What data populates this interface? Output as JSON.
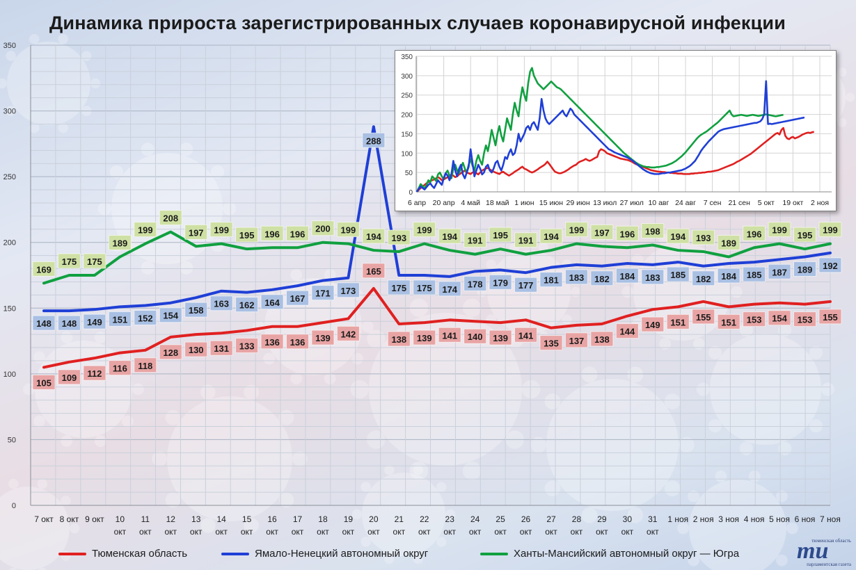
{
  "title": "Динамика прироста зарегистрированных случаев коронавирусной инфекции",
  "colors": {
    "tyumen": "#e02020",
    "yanao": "#1f3fd6",
    "hmao": "#10a040",
    "tyumen_label_bg": "#e8a4a4",
    "yanao_label_bg": "#a9c0e3",
    "hmao_label_bg": "#cfe0a4"
  },
  "legend": {
    "tyumen": "Тюменская область",
    "yanao": "Ямало-Ненецкий автономный округ",
    "hmao": "Ханты-Мансийский автономный округ — Югра"
  },
  "logo": {
    "mark": "mu",
    "top": "тюменская область",
    "bottom": "парламентская газета"
  },
  "chart_data": [
    {
      "type": "line",
      "title": "Динамика прироста зарегистрированных случаев коронавирусной инфекции",
      "categories": [
        [
          "7 окт"
        ],
        [
          "8 окт"
        ],
        [
          "9 окт"
        ],
        [
          "10",
          "окт"
        ],
        [
          "11",
          "окт"
        ],
        [
          "12",
          "окт"
        ],
        [
          "13",
          "окт"
        ],
        [
          "14",
          "окт"
        ],
        [
          "15",
          "окт"
        ],
        [
          "16",
          "окт"
        ],
        [
          "17",
          "окт"
        ],
        [
          "18",
          "окт"
        ],
        [
          "19",
          "окт"
        ],
        [
          "20",
          "окт"
        ],
        [
          "21",
          "окт"
        ],
        [
          "22",
          "окт"
        ],
        [
          "23",
          "окт"
        ],
        [
          "24",
          "окт"
        ],
        [
          "25",
          "окт"
        ],
        [
          "26",
          "окт"
        ],
        [
          "27",
          "окт"
        ],
        [
          "28",
          "окт"
        ],
        [
          "29",
          "окт"
        ],
        [
          "30",
          "окт"
        ],
        [
          "31",
          "окт"
        ],
        [
          "1 ноя"
        ],
        [
          "2 ноя"
        ],
        [
          "3 ноя"
        ],
        [
          "4 ноя"
        ],
        [
          "5 ноя"
        ],
        [
          "6 ноя"
        ],
        [
          "7 ноя"
        ]
      ],
      "ylim": [
        0,
        350
      ],
      "yticks": [
        0,
        50,
        100,
        150,
        200,
        250,
        300,
        350
      ],
      "grid": true,
      "legend_position": "bottom",
      "series": [
        {
          "key": "tyumen",
          "name": "Тюменская область",
          "values": [
            105,
            109,
            112,
            116,
            118,
            128,
            130,
            131,
            133,
            136,
            136,
            139,
            142,
            165,
            138,
            139,
            141,
            140,
            139,
            141,
            135,
            137,
            138,
            144,
            149,
            151,
            155,
            151,
            153,
            154,
            153,
            155
          ]
        },
        {
          "key": "yanao",
          "name": "Ямало-Ненецкий автономный округ",
          "values": [
            148,
            148,
            149,
            151,
            152,
            154,
            158,
            163,
            162,
            164,
            167,
            171,
            173,
            288,
            175,
            175,
            174,
            178,
            179,
            177,
            181,
            183,
            182,
            184,
            183,
            185,
            182,
            184,
            185,
            187,
            189,
            192
          ]
        },
        {
          "key": "hmao",
          "name": "Ханты-Мансийский автономный округ — Югра",
          "values": [
            169,
            175,
            175,
            189,
            199,
            208,
            197,
            199,
            195,
            196,
            196,
            200,
            199,
            194,
            193,
            199,
            194,
            191,
            195,
            191,
            194,
            199,
            197,
            196,
            198,
            194,
            193,
            189,
            196,
            199,
            195,
            199
          ]
        }
      ]
    },
    {
      "type": "line",
      "x_tick_labels": [
        "6 апр",
        "20 апр",
        "4 май",
        "18 май",
        "1 июн",
        "15 июн",
        "29 июн",
        "13 июл",
        "27 июл",
        "10 авг",
        "24 авг",
        "7 сен",
        "21 сен",
        "5 окт",
        "19 окт",
        "2 ноя"
      ],
      "ylim": [
        0,
        350
      ],
      "yticks": [
        0,
        50,
        100,
        150,
        200,
        250,
        300,
        350
      ],
      "grid": true,
      "points_per_tick": 14,
      "series": [
        {
          "key": "tyumen",
          "name": "Тюменская область",
          "values": [
            0,
            5,
            10,
            14,
            18,
            22,
            25,
            28,
            30,
            32,
            35,
            38,
            35,
            30,
            32,
            35,
            38,
            40,
            45,
            42,
            38,
            40,
            45,
            48,
            52,
            55,
            50,
            48,
            46,
            50,
            52,
            48,
            45,
            50,
            55,
            58,
            60,
            62,
            58,
            55,
            52,
            50,
            48,
            46,
            50,
            52,
            48,
            45,
            42,
            45,
            48,
            52,
            55,
            58,
            62,
            65,
            60,
            58,
            55,
            52,
            50,
            52,
            55,
            58,
            62,
            65,
            68,
            72,
            78,
            72,
            65,
            58,
            52,
            50,
            48,
            48,
            50,
            52,
            55,
            58,
            62,
            65,
            68,
            70,
            75,
            78,
            80,
            82,
            85,
            82,
            80,
            82,
            85,
            88,
            90,
            105,
            110,
            108,
            105,
            100,
            98,
            96,
            94,
            92,
            90,
            88,
            86,
            85,
            84,
            83,
            82,
            80,
            78,
            75,
            72,
            70,
            68,
            66,
            64,
            62,
            60,
            58,
            56,
            55,
            54,
            53,
            52,
            52,
            51,
            51,
            50,
            50,
            49,
            49,
            48,
            48,
            47,
            47,
            47,
            46,
            46,
            46,
            46,
            47,
            47,
            48,
            48,
            49,
            49,
            50,
            50,
            51,
            52,
            52,
            53,
            54,
            55,
            56,
            58,
            60,
            62,
            64,
            66,
            68,
            70,
            72,
            75,
            78,
            80,
            83,
            86,
            89,
            92,
            95,
            98,
            102,
            106,
            110,
            114,
            118,
            122,
            126,
            130,
            134,
            138,
            142,
            146,
            150,
            152,
            148,
            160,
            165,
            145,
            138,
            136,
            140,
            142,
            138,
            140,
            142,
            145,
            148,
            150,
            152,
            153,
            152,
            154,
            155
          ]
        },
        {
          "key": "yanao",
          "name": "Ямало-Ненецкий автономный округ",
          "values": [
            0,
            8,
            14,
            10,
            6,
            12,
            18,
            22,
            15,
            10,
            20,
            30,
            24,
            18,
            35,
            48,
            42,
            30,
            45,
            80,
            55,
            40,
            60,
            70,
            45,
            35,
            50,
            65,
            110,
            75,
            40,
            55,
            70,
            60,
            45,
            50,
            65,
            70,
            55,
            50,
            60,
            75,
            80,
            65,
            55,
            70,
            90,
            85,
            100,
            110,
            95,
            100,
            120,
            150,
            130,
            140,
            150,
            165,
            170,
            160,
            175,
            180,
            170,
            160,
            190,
            240,
            210,
            190,
            180,
            175,
            180,
            185,
            190,
            195,
            200,
            205,
            210,
            200,
            195,
            205,
            215,
            210,
            200,
            195,
            190,
            185,
            180,
            175,
            170,
            165,
            160,
            155,
            150,
            145,
            140,
            135,
            130,
            125,
            120,
            115,
            110,
            108,
            105,
            102,
            100,
            98,
            96,
            94,
            92,
            90,
            88,
            85,
            82,
            78,
            74,
            70,
            66,
            62,
            58,
            55,
            52,
            50,
            48,
            47,
            46,
            46,
            46,
            47,
            48,
            48,
            49,
            50,
            50,
            51,
            52,
            53,
            54,
            55,
            56,
            58,
            60,
            63,
            66,
            70,
            75,
            80,
            88,
            96,
            105,
            112,
            118,
            124,
            130,
            135,
            140,
            145,
            150,
            155,
            158,
            160,
            162,
            163,
            164,
            165,
            166,
            167,
            168,
            169,
            170,
            171,
            172,
            173,
            174,
            175,
            176,
            177,
            178,
            178,
            180,
            182,
            188,
            200,
            286,
            175,
            176,
            175,
            176,
            177,
            178,
            179,
            180,
            181,
            182,
            183,
            184,
            185,
            186,
            187,
            188,
            189,
            190,
            191,
            192
          ]
        },
        {
          "key": "hmao",
          "name": "Ханты-Мансийский автономный округ — Югра",
          "values": [
            0,
            10,
            20,
            15,
            8,
            18,
            30,
            25,
            40,
            35,
            28,
            45,
            50,
            40,
            32,
            48,
            55,
            42,
            35,
            60,
            70,
            55,
            48,
            62,
            75,
            60,
            50,
            70,
            85,
            68,
            55,
            80,
            95,
            80,
            70,
            100,
            120,
            105,
            130,
            160,
            140,
            120,
            150,
            170,
            145,
            130,
            160,
            190,
            175,
            160,
            200,
            230,
            210,
            195,
            240,
            270,
            250,
            235,
            280,
            310,
            320,
            300,
            290,
            280,
            275,
            270,
            265,
            270,
            275,
            280,
            285,
            280,
            275,
            270,
            268,
            265,
            260,
            255,
            250,
            245,
            240,
            235,
            230,
            225,
            220,
            215,
            210,
            205,
            200,
            195,
            190,
            185,
            180,
            175,
            170,
            165,
            160,
            155,
            150,
            145,
            140,
            135,
            130,
            125,
            120,
            115,
            110,
            105,
            100,
            96,
            92,
            88,
            84,
            80,
            76,
            73,
            70,
            68,
            66,
            65,
            64,
            64,
            63,
            63,
            63,
            64,
            64,
            65,
            66,
            67,
            68,
            70,
            72,
            74,
            77,
            80,
            84,
            88,
            92,
            97,
            102,
            108,
            114,
            120,
            126,
            132,
            138,
            143,
            147,
            150,
            153,
            156,
            160,
            164,
            168,
            172,
            176,
            180,
            185,
            190,
            195,
            200,
            205,
            210,
            200,
            195,
            196,
            197,
            198,
            199,
            198,
            197,
            196,
            197,
            198,
            199,
            198,
            197,
            196,
            197,
            198,
            199,
            200,
            199,
            198,
            197,
            196,
            195,
            196,
            197,
            198,
            199
          ]
        }
      ]
    }
  ]
}
